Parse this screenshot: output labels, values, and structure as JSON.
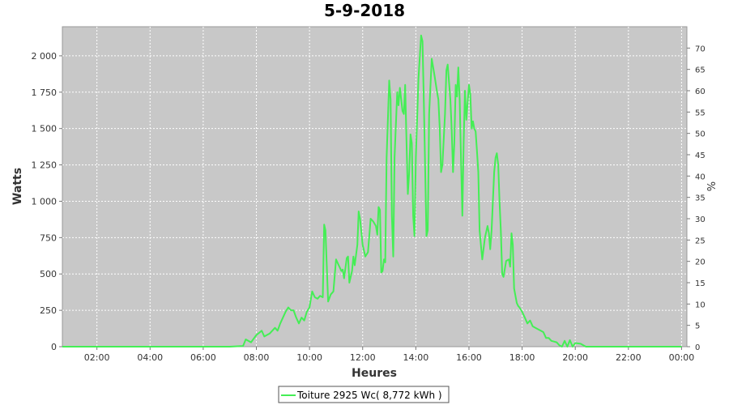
{
  "chart_data": {
    "type": "line",
    "title": "5-9-2018",
    "xlabel": "Heures",
    "ylabel": "Watts",
    "y2label": "%",
    "xlim": [
      0.7,
      24.2
    ],
    "ylim": [
      0,
      2200
    ],
    "y2lim": [
      0,
      75
    ],
    "grid": true,
    "legend_position": "bottom-center",
    "x_ticks": [
      {
        "value": 2,
        "label": "02:00"
      },
      {
        "value": 4,
        "label": "04:00"
      },
      {
        "value": 6,
        "label": "06:00"
      },
      {
        "value": 8,
        "label": "08:00"
      },
      {
        "value": 10,
        "label": "10:00"
      },
      {
        "value": 12,
        "label": "12:00"
      },
      {
        "value": 14,
        "label": "14:00"
      },
      {
        "value": 16,
        "label": "16:00"
      },
      {
        "value": 18,
        "label": "18:00"
      },
      {
        "value": 20,
        "label": "20:00"
      },
      {
        "value": 22,
        "label": "22:00"
      },
      {
        "value": 24,
        "label": "00:00"
      }
    ],
    "y_ticks": [
      {
        "value": 0,
        "label": "0"
      },
      {
        "value": 250,
        "label": "250"
      },
      {
        "value": 500,
        "label": "500"
      },
      {
        "value": 750,
        "label": "750"
      },
      {
        "value": 1000,
        "label": "1 000"
      },
      {
        "value": 1250,
        "label": "1 250"
      },
      {
        "value": 1500,
        "label": "1 500"
      },
      {
        "value": 1750,
        "label": "1 750"
      },
      {
        "value": 2000,
        "label": "2 000"
      }
    ],
    "y2_ticks": [
      {
        "value": 0,
        "label": "0"
      },
      {
        "value": 5,
        "label": "5"
      },
      {
        "value": 10,
        "label": "10"
      },
      {
        "value": 15,
        "label": "15"
      },
      {
        "value": 20,
        "label": "20"
      },
      {
        "value": 25,
        "label": "25"
      },
      {
        "value": 30,
        "label": "30"
      },
      {
        "value": 35,
        "label": "35"
      },
      {
        "value": 40,
        "label": "40"
      },
      {
        "value": 45,
        "label": "45"
      },
      {
        "value": 50,
        "label": "50"
      },
      {
        "value": 55,
        "label": "55"
      },
      {
        "value": 60,
        "label": "60"
      },
      {
        "value": 65,
        "label": "65"
      },
      {
        "value": 70,
        "label": "70"
      }
    ],
    "series": [
      {
        "name": "Toiture 2925 Wc( 8,772 kWh )",
        "color": "#44ee55",
        "points": [
          [
            0.7,
            0
          ],
          [
            7.0,
            0
          ],
          [
            7.5,
            5
          ],
          [
            7.6,
            50
          ],
          [
            7.8,
            30
          ],
          [
            8.0,
            80
          ],
          [
            8.2,
            110
          ],
          [
            8.3,
            70
          ],
          [
            8.5,
            90
          ],
          [
            8.7,
            130
          ],
          [
            8.8,
            110
          ],
          [
            8.9,
            160
          ],
          [
            9.0,
            200
          ],
          [
            9.1,
            240
          ],
          [
            9.2,
            270
          ],
          [
            9.3,
            250
          ],
          [
            9.4,
            250
          ],
          [
            9.5,
            200
          ],
          [
            9.6,
            160
          ],
          [
            9.7,
            200
          ],
          [
            9.8,
            180
          ],
          [
            9.9,
            240
          ],
          [
            10.0,
            270
          ],
          [
            10.1,
            380
          ],
          [
            10.2,
            340
          ],
          [
            10.3,
            330
          ],
          [
            10.4,
            350
          ],
          [
            10.5,
            340
          ],
          [
            10.55,
            840
          ],
          [
            10.6,
            800
          ],
          [
            10.7,
            310
          ],
          [
            10.8,
            360
          ],
          [
            10.9,
            380
          ],
          [
            11.0,
            600
          ],
          [
            11.1,
            560
          ],
          [
            11.2,
            520
          ],
          [
            11.25,
            530
          ],
          [
            11.3,
            470
          ],
          [
            11.4,
            610
          ],
          [
            11.45,
            620
          ],
          [
            11.5,
            440
          ],
          [
            11.6,
            520
          ],
          [
            11.65,
            620
          ],
          [
            11.7,
            560
          ],
          [
            11.8,
            700
          ],
          [
            11.85,
            930
          ],
          [
            11.9,
            880
          ],
          [
            12.0,
            700
          ],
          [
            12.1,
            620
          ],
          [
            12.2,
            650
          ],
          [
            12.3,
            880
          ],
          [
            12.4,
            860
          ],
          [
            12.5,
            830
          ],
          [
            12.55,
            770
          ],
          [
            12.6,
            960
          ],
          [
            12.65,
            940
          ],
          [
            12.7,
            510
          ],
          [
            12.75,
            520
          ],
          [
            12.8,
            600
          ],
          [
            12.85,
            580
          ],
          [
            12.9,
            1300
          ],
          [
            13.0,
            1830
          ],
          [
            13.05,
            1700
          ],
          [
            13.1,
            900
          ],
          [
            13.15,
            620
          ],
          [
            13.2,
            1300
          ],
          [
            13.3,
            1750
          ],
          [
            13.35,
            1660
          ],
          [
            13.4,
            1780
          ],
          [
            13.5,
            1620
          ],
          [
            13.55,
            1600
          ],
          [
            13.6,
            1800
          ],
          [
            13.65,
            1400
          ],
          [
            13.7,
            1050
          ],
          [
            13.75,
            1200
          ],
          [
            13.8,
            1460
          ],
          [
            13.85,
            1400
          ],
          [
            13.9,
            900
          ],
          [
            13.95,
            760
          ],
          [
            14.0,
            1300
          ],
          [
            14.1,
            1840
          ],
          [
            14.2,
            2140
          ],
          [
            14.25,
            2100
          ],
          [
            14.3,
            1700
          ],
          [
            14.35,
            1250
          ],
          [
            14.4,
            760
          ],
          [
            14.45,
            800
          ],
          [
            14.5,
            1600
          ],
          [
            14.6,
            1980
          ],
          [
            14.7,
            1870
          ],
          [
            14.8,
            1750
          ],
          [
            14.85,
            1700
          ],
          [
            14.9,
            1500
          ],
          [
            14.95,
            1200
          ],
          [
            15.0,
            1250
          ],
          [
            15.1,
            1600
          ],
          [
            15.15,
            1900
          ],
          [
            15.2,
            1940
          ],
          [
            15.3,
            1700
          ],
          [
            15.35,
            1500
          ],
          [
            15.4,
            1200
          ],
          [
            15.45,
            1400
          ],
          [
            15.5,
            1800
          ],
          [
            15.55,
            1720
          ],
          [
            15.6,
            1920
          ],
          [
            15.65,
            1700
          ],
          [
            15.7,
            1300
          ],
          [
            15.75,
            900
          ],
          [
            15.8,
            1400
          ],
          [
            15.85,
            1760
          ],
          [
            15.9,
            1560
          ],
          [
            16.0,
            1800
          ],
          [
            16.05,
            1740
          ],
          [
            16.1,
            1500
          ],
          [
            16.15,
            1550
          ],
          [
            16.2,
            1500
          ],
          [
            16.25,
            1480
          ],
          [
            16.3,
            1350
          ],
          [
            16.35,
            1200
          ],
          [
            16.4,
            800
          ],
          [
            16.45,
            700
          ],
          [
            16.5,
            600
          ],
          [
            16.6,
            750
          ],
          [
            16.7,
            830
          ],
          [
            16.75,
            780
          ],
          [
            16.8,
            670
          ],
          [
            16.85,
            800
          ],
          [
            16.9,
            1000
          ],
          [
            16.95,
            1200
          ],
          [
            17.0,
            1300
          ],
          [
            17.05,
            1330
          ],
          [
            17.1,
            1250
          ],
          [
            17.15,
            1000
          ],
          [
            17.2,
            800
          ],
          [
            17.25,
            500
          ],
          [
            17.3,
            480
          ],
          [
            17.4,
            590
          ],
          [
            17.5,
            600
          ],
          [
            17.55,
            550
          ],
          [
            17.6,
            780
          ],
          [
            17.65,
            700
          ],
          [
            17.7,
            400
          ],
          [
            17.8,
            300
          ],
          [
            17.85,
            280
          ],
          [
            17.9,
            270
          ],
          [
            18.0,
            240
          ],
          [
            18.1,
            200
          ],
          [
            18.2,
            160
          ],
          [
            18.3,
            180
          ],
          [
            18.4,
            140
          ],
          [
            18.5,
            130
          ],
          [
            18.6,
            120
          ],
          [
            18.7,
            110
          ],
          [
            18.8,
            100
          ],
          [
            18.9,
            60
          ],
          [
            19.0,
            60
          ],
          [
            19.1,
            40
          ],
          [
            19.2,
            35
          ],
          [
            19.3,
            30
          ],
          [
            19.4,
            10
          ],
          [
            19.5,
            0
          ],
          [
            19.6,
            40
          ],
          [
            19.7,
            0
          ],
          [
            19.8,
            45
          ],
          [
            19.9,
            0
          ],
          [
            20.0,
            25
          ],
          [
            20.2,
            20
          ],
          [
            20.4,
            0
          ],
          [
            24.0,
            0
          ]
        ]
      }
    ]
  }
}
